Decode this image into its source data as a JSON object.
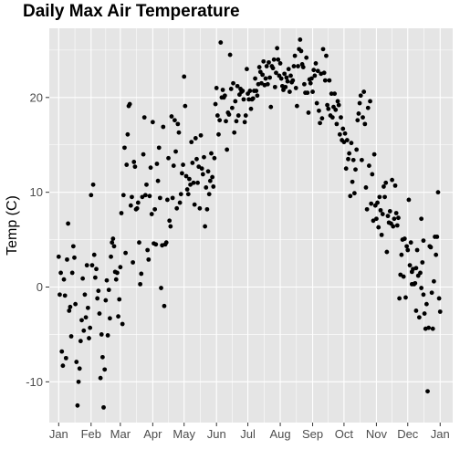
{
  "chart_data": {
    "type": "scatter",
    "title": "Daily Max Air Temperature",
    "xlabel": "",
    "ylabel": "Temp (C)",
    "x_tick_labels": [
      "Jan",
      "Feb",
      "Mar",
      "Apr",
      "May",
      "Jun",
      "Jul",
      "Aug",
      "Sep",
      "Oct",
      "Nov",
      "Dec",
      "Jan"
    ],
    "y_ticks": [
      -10,
      0,
      10,
      20
    ],
    "y_tick_labels": [
      "-10",
      "0",
      "10",
      "20"
    ],
    "xlim_day": [
      -8,
      378
    ],
    "ylim": [
      -14.3,
      27.3
    ],
    "grid": true,
    "background": "#e5e5e5",
    "grid_color": "#ffffff",
    "point_color": "#000000",
    "points": [
      [
        1,
        3.2
      ],
      [
        2,
        -0.8
      ],
      [
        3,
        1.5
      ],
      [
        4,
        -6.8
      ],
      [
        5,
        -8.3
      ],
      [
        6,
        0.8
      ],
      [
        7,
        -0.9
      ],
      [
        8,
        -7.5
      ],
      [
        9,
        2.9
      ],
      [
        10,
        6.7
      ],
      [
        11,
        -2.5
      ],
      [
        12,
        -2.1
      ],
      [
        13,
        -5.2
      ],
      [
        14,
        1.5
      ],
      [
        15,
        4.3
      ],
      [
        16,
        3.1
      ],
      [
        17,
        -1.8
      ],
      [
        18,
        -7.9
      ],
      [
        19,
        -12.5
      ],
      [
        20,
        -10
      ],
      [
        21,
        -8.6
      ],
      [
        22,
        -5.7
      ],
      [
        23,
        -3.5
      ],
      [
        24,
        0.9
      ],
      [
        25,
        -4.6
      ],
      [
        26,
        -0.8
      ],
      [
        27,
        -3.2
      ],
      [
        28,
        2.3
      ],
      [
        29,
        -2.2
      ],
      [
        30,
        -5.4
      ],
      [
        31,
        -4.3
      ],
      [
        32,
        9.7
      ],
      [
        33,
        2.3
      ],
      [
        34,
        10.8
      ],
      [
        35,
        3.4
      ],
      [
        36,
        1
      ],
      [
        37,
        1.9
      ],
      [
        38,
        -1.2
      ],
      [
        39,
        -0.4
      ],
      [
        40,
        -2.8
      ],
      [
        41,
        -9.6
      ],
      [
        42,
        -5
      ],
      [
        43,
        -7.4
      ],
      [
        44,
        -12.7
      ],
      [
        45,
        -8.7
      ],
      [
        46,
        -1.4
      ],
      [
        47,
        0.7
      ],
      [
        48,
        -5.1
      ],
      [
        49,
        -0.3
      ],
      [
        50,
        -3.3
      ],
      [
        51,
        3.2
      ],
      [
        52,
        4.7
      ],
      [
        53,
        5.1
      ],
      [
        54,
        4.3
      ],
      [
        55,
        1.6
      ],
      [
        56,
        0.8
      ],
      [
        57,
        1.5
      ],
      [
        58,
        -3.1
      ],
      [
        59,
        -1.3
      ],
      [
        60,
        2.1
      ],
      [
        61,
        7.8
      ],
      [
        62,
        -3.9
      ],
      [
        63,
        9.7
      ],
      [
        64,
        14.7
      ],
      [
        65,
        3.6
      ],
      [
        66,
        12.9
      ],
      [
        67,
        16.1
      ],
      [
        68,
        19.1
      ],
      [
        69,
        19.3
      ],
      [
        70,
        8.6
      ],
      [
        71,
        9.5
      ],
      [
        72,
        2.6
      ],
      [
        73,
        13.2
      ],
      [
        74,
        12.7
      ],
      [
        75,
        8.2
      ],
      [
        76,
        8.3
      ],
      [
        77,
        8.9
      ],
      [
        78,
        4.7
      ],
      [
        79,
        0.3
      ],
      [
        80,
        1.4
      ],
      [
        81,
        9.5
      ],
      [
        82,
        14
      ],
      [
        83,
        17.9
      ],
      [
        84,
        9.7
      ],
      [
        85,
        10.8
      ],
      [
        86,
        3.9
      ],
      [
        87,
        2.9
      ],
      [
        88,
        9.6
      ],
      [
        89,
        12.6
      ],
      [
        90,
        7.7
      ],
      [
        91,
        17.4
      ],
      [
        92,
        4.6
      ],
      [
        93,
        8.2
      ],
      [
        94,
        4.5
      ],
      [
        95,
        13
      ],
      [
        96,
        11.2
      ],
      [
        97,
        14.7
      ],
      [
        98,
        9.4
      ],
      [
        99,
        -0.1
      ],
      [
        100,
        4.4
      ],
      [
        101,
        16.9
      ],
      [
        102,
        -2
      ],
      [
        103,
        4.5
      ],
      [
        104,
        4.7
      ],
      [
        105,
        9.2
      ],
      [
        106,
        13.6
      ],
      [
        107,
        7
      ],
      [
        108,
        6.4
      ],
      [
        109,
        18
      ],
      [
        110,
        9.4
      ],
      [
        111,
        12.8
      ],
      [
        112,
        17.6
      ],
      [
        113,
        14.3
      ],
      [
        114,
        8.3
      ],
      [
        115,
        17.2
      ],
      [
        116,
        16.3
      ],
      [
        117,
        8.9
      ],
      [
        118,
        9.8
      ],
      [
        119,
        12
      ],
      [
        120,
        12.9
      ],
      [
        121,
        22.2
      ],
      [
        122,
        19.1
      ],
      [
        123,
        11.7
      ],
      [
        124,
        10.3
      ],
      [
        125,
        9.8
      ],
      [
        126,
        11.4
      ],
      [
        127,
        10.8
      ],
      [
        128,
        15.3
      ],
      [
        129,
        13.1
      ],
      [
        130,
        11
      ],
      [
        131,
        8.7
      ],
      [
        132,
        15.7
      ],
      [
        133,
        13.5
      ],
      [
        134,
        11
      ],
      [
        135,
        12.7
      ],
      [
        136,
        8.3
      ],
      [
        137,
        16
      ],
      [
        138,
        12.5
      ],
      [
        139,
        11.9
      ],
      [
        140,
        13.7
      ],
      [
        141,
        6.4
      ],
      [
        142,
        10.5
      ],
      [
        143,
        8.2
      ],
      [
        144,
        12.2
      ],
      [
        145,
        9.8
      ],
      [
        146,
        11.2
      ],
      [
        147,
        14.1
      ],
      [
        148,
        11.6
      ],
      [
        149,
        10.6
      ],
      [
        150,
        13.6
      ],
      [
        151,
        19.3
      ],
      [
        152,
        21
      ],
      [
        153,
        18.1
      ],
      [
        154,
        16.1
      ],
      [
        155,
        17.6
      ],
      [
        156,
        25.8
      ],
      [
        157,
        20
      ],
      [
        158,
        20.8
      ],
      [
        159,
        20
      ],
      [
        160,
        20.2
      ],
      [
        161,
        17.5
      ],
      [
        162,
        14.5
      ],
      [
        163,
        18.4
      ],
      [
        164,
        18.2
      ],
      [
        165,
        24.5
      ],
      [
        166,
        20.9
      ],
      [
        167,
        18.9
      ],
      [
        168,
        21.5
      ],
      [
        169,
        16.3
      ],
      [
        170,
        19.6
      ],
      [
        171,
        17.5
      ],
      [
        172,
        21.2
      ],
      [
        173,
        18.1
      ],
      [
        174,
        20.3
      ],
      [
        175,
        20.9
      ],
      [
        176,
        20.6
      ],
      [
        177,
        20.7
      ],
      [
        178,
        19.8
      ],
      [
        179,
        17.4
      ],
      [
        180,
        18.1
      ],
      [
        181,
        23
      ],
      [
        182,
        20.4
      ],
      [
        183,
        19.8
      ],
      [
        184,
        20.7
      ],
      [
        185,
        18.8
      ],
      [
        186,
        19.8
      ],
      [
        187,
        19.9
      ],
      [
        188,
        20.7
      ],
      [
        189,
        22
      ],
      [
        190,
        20.7
      ],
      [
        191,
        20.2
      ],
      [
        192,
        21.4
      ],
      [
        193,
        23.2
      ],
      [
        194,
        22.7
      ],
      [
        195,
        21.5
      ],
      [
        196,
        22.4
      ],
      [
        197,
        23.8
      ],
      [
        198,
        21.3
      ],
      [
        199,
        22
      ],
      [
        200,
        23.3
      ],
      [
        201,
        21.4
      ],
      [
        202,
        23.7
      ],
      [
        203,
        22.1
      ],
      [
        204,
        19
      ],
      [
        205,
        23.3
      ],
      [
        206,
        23.1
      ],
      [
        207,
        24
      ],
      [
        208,
        21.1
      ],
      [
        209,
        22.6
      ],
      [
        210,
        25.2
      ],
      [
        211,
        24
      ],
      [
        212,
        22.3
      ],
      [
        213,
        23.6
      ],
      [
        214,
        22
      ],
      [
        215,
        21.2
      ],
      [
        216,
        20.8
      ],
      [
        217,
        22.5
      ],
      [
        218,
        21.1
      ],
      [
        219,
        22.1
      ],
      [
        220,
        21.7
      ],
      [
        221,
        23
      ],
      [
        222,
        20.6
      ],
      [
        223,
        22.3
      ],
      [
        224,
        21.6
      ],
      [
        225,
        21.8
      ],
      [
        226,
        23.3
      ],
      [
        227,
        24.4
      ],
      [
        228,
        21
      ],
      [
        229,
        19.1
      ],
      [
        230,
        23.3
      ],
      [
        231,
        25.1
      ],
      [
        232,
        26.1
      ],
      [
        233,
        24.9
      ],
      [
        234,
        23.5
      ],
      [
        235,
        23.2
      ],
      [
        236,
        21.4
      ],
      [
        237,
        20.5
      ],
      [
        238,
        24.2
      ],
      [
        239,
        20.5
      ],
      [
        240,
        18.4
      ],
      [
        241,
        21.9
      ],
      [
        242,
        21.5
      ],
      [
        243,
        22
      ],
      [
        244,
        20.6
      ],
      [
        245,
        22.9
      ],
      [
        246,
        22.3
      ],
      [
        247,
        23.6
      ],
      [
        248,
        19.4
      ],
      [
        249,
        22.8
      ],
      [
        250,
        18.6
      ],
      [
        251,
        17.3
      ],
      [
        252,
        22.5
      ],
      [
        253,
        17.8
      ],
      [
        254,
        25.1
      ],
      [
        255,
        22.6
      ],
      [
        256,
        21.8
      ],
      [
        257,
        24.4
      ],
      [
        258,
        19.2
      ],
      [
        259,
        18.8
      ],
      [
        260,
        21.8
      ],
      [
        261,
        18.1
      ],
      [
        262,
        20.4
      ],
      [
        263,
        17.9
      ],
      [
        264,
        19
      ],
      [
        265,
        20.4
      ],
      [
        266,
        18.7
      ],
      [
        267,
        17.2
      ],
      [
        268,
        19.6
      ],
      [
        269,
        19.2
      ],
      [
        270,
        16.1
      ],
      [
        271,
        17.9
      ],
      [
        272,
        15.5
      ],
      [
        273,
        16.7
      ],
      [
        274,
        15.3
      ],
      [
        275,
        16.2
      ],
      [
        276,
        12.5
      ],
      [
        277,
        15.5
      ],
      [
        278,
        13.5
      ],
      [
        279,
        14.1
      ],
      [
        280,
        9.6
      ],
      [
        281,
        15.2
      ],
      [
        282,
        11.1
      ],
      [
        283,
        13.4
      ],
      [
        284,
        9.9
      ],
      [
        285,
        12.4
      ],
      [
        286,
        14.5
      ],
      [
        287,
        17.6
      ],
      [
        288,
        18.3
      ],
      [
        289,
        19.4
      ],
      [
        290,
        20.2
      ],
      [
        291,
        13.4
      ],
      [
        292,
        17.9
      ],
      [
        293,
        20.6
      ],
      [
        294,
        17.2
      ],
      [
        295,
        10.5
      ],
      [
        296,
        8.2
      ],
      [
        297,
        18.9
      ],
      [
        298,
        12.8
      ],
      [
        299,
        19.6
      ],
      [
        300,
        8.8
      ],
      [
        301,
        11.9
      ],
      [
        302,
        7
      ],
      [
        303,
        14
      ],
      [
        304,
        8.6
      ],
      [
        305,
        7.2
      ],
      [
        306,
        8.9
      ],
      [
        307,
        6.3
      ],
      [
        308,
        9.5
      ],
      [
        309,
        8.1
      ],
      [
        310,
        5.5
      ],
      [
        311,
        7.7
      ],
      [
        312,
        10.6
      ],
      [
        313,
        9.5
      ],
      [
        314,
        11
      ],
      [
        315,
        3.7
      ],
      [
        316,
        7.5
      ],
      [
        317,
        6.8
      ],
      [
        318,
        8
      ],
      [
        319,
        6.7
      ],
      [
        320,
        11.3
      ],
      [
        321,
        6.4
      ],
      [
        322,
        7.2
      ],
      [
        323,
        10.7
      ],
      [
        324,
        7.8
      ],
      [
        325,
        6.5
      ],
      [
        326,
        7.3
      ],
      [
        327,
        -1.2
      ],
      [
        328,
        1.3
      ],
      [
        329,
        3.4
      ],
      [
        330,
        5
      ],
      [
        331,
        1.1
      ],
      [
        332,
        5.1
      ],
      [
        333,
        -1.1
      ],
      [
        334,
        4.3
      ],
      [
        335,
        3.9
      ],
      [
        336,
        9.2
      ],
      [
        337,
        2.3
      ],
      [
        338,
        4.7
      ],
      [
        339,
        0.3
      ],
      [
        340,
        1.9
      ],
      [
        341,
        0.3
      ],
      [
        342,
        0.4
      ],
      [
        343,
        -2.5
      ],
      [
        344,
        3.9
      ],
      [
        345,
        1.2
      ],
      [
        346,
        -3.2
      ],
      [
        347,
        1.5
      ],
      [
        348,
        -0.1
      ],
      [
        349,
        2.6
      ],
      [
        350,
        -0.8
      ],
      [
        351,
        -2.8
      ],
      [
        352,
        -4.4
      ],
      [
        353,
        -1.8
      ],
      [
        354,
        -11
      ],
      [
        355,
        -4.3
      ],
      [
        356,
        4.3
      ],
      [
        357,
        4.2
      ],
      [
        358,
        -0.6
      ],
      [
        359,
        -4.4
      ],
      [
        360,
        0.6
      ],
      [
        361,
        5.3
      ],
      [
        362,
        3.4
      ],
      [
        363,
        5.3
      ],
      [
        364,
        10
      ],
      [
        365,
        -1.2
      ],
      [
        366,
        -2.6
      ],
      [
        339,
        1.6
      ],
      [
        343,
        2
      ],
      [
        348,
        7.2
      ],
      [
        350,
        4.9
      ]
    ]
  }
}
